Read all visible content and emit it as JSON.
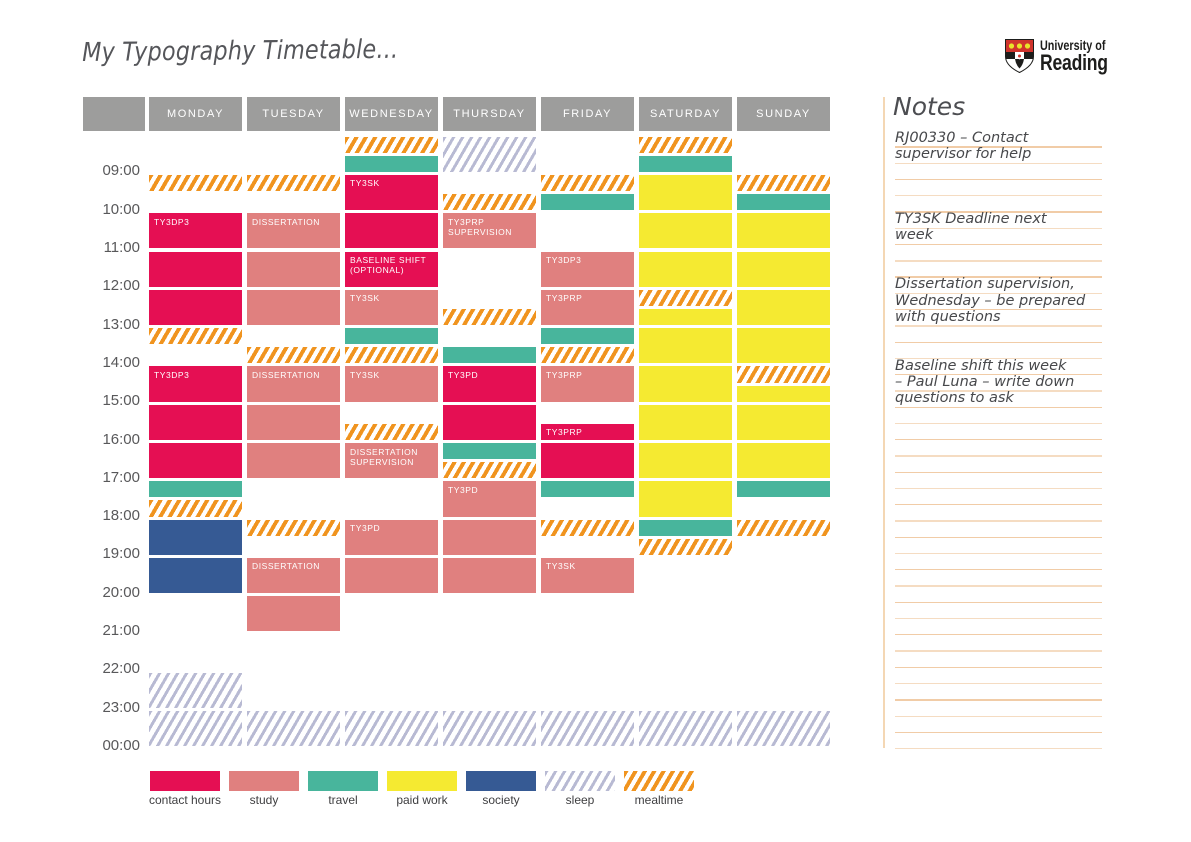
{
  "title": "My Typography Timetable...",
  "logo": {
    "name": "university-of-reading",
    "line1": "University of",
    "line2": "Reading",
    "shield_red": "#d0342c",
    "shield_gold": "#e8e32a",
    "text_color": "#1d1d1b"
  },
  "days": [
    "MONDAY",
    "TUESDAY",
    "WEDNESDAY",
    "THURSDAY",
    "FRIDAY",
    "SATURDAY",
    "SUNDAY"
  ],
  "time_labels": [
    "09:00",
    "10:00",
    "11:00",
    "12:00",
    "13:00",
    "14:00",
    "15:00",
    "16:00",
    "17:00",
    "18:00",
    "19:00",
    "20:00",
    "21:00",
    "22:00",
    "23:00",
    "00:00"
  ],
  "header_color": "#9d9d9c",
  "categories": {
    "contact": {
      "label": "contact hours",
      "color": "#e50f53",
      "pattern": "solid"
    },
    "study": {
      "label": "study",
      "color": "#e0807f",
      "pattern": "solid"
    },
    "travel": {
      "label": "travel",
      "color": "#48b59c",
      "pattern": "solid"
    },
    "paidwork": {
      "label": "paid work",
      "color": "#f5ea31",
      "pattern": "solid"
    },
    "society": {
      "label": "society",
      "color": "#365a94",
      "pattern": "solid"
    },
    "sleep": {
      "label": "sleep",
      "color": "#b8bad3",
      "pattern": "stripes"
    },
    "mealtime": {
      "label": "mealtime",
      "color": "#f0941f",
      "pattern": "stripes"
    }
  },
  "legend_order": [
    "contact",
    "study",
    "travel",
    "paidwork",
    "society",
    "sleep",
    "mealtime"
  ],
  "blocks": [
    {
      "day": 0,
      "start": "09:00",
      "end": "09:30",
      "category": "mealtime",
      "label": ""
    },
    {
      "day": 0,
      "start": "10:00",
      "end": "11:00",
      "category": "contact",
      "label": "TY3DP3"
    },
    {
      "day": 0,
      "start": "11:00",
      "end": "12:00",
      "category": "contact",
      "label": ""
    },
    {
      "day": 0,
      "start": "12:00",
      "end": "13:00",
      "category": "contact",
      "label": ""
    },
    {
      "day": 0,
      "start": "13:00",
      "end": "13:30",
      "category": "mealtime",
      "label": ""
    },
    {
      "day": 0,
      "start": "14:00",
      "end": "15:00",
      "category": "contact",
      "label": "TY3DP3"
    },
    {
      "day": 0,
      "start": "15:00",
      "end": "16:00",
      "category": "contact",
      "label": ""
    },
    {
      "day": 0,
      "start": "16:00",
      "end": "17:00",
      "category": "contact",
      "label": ""
    },
    {
      "day": 0,
      "start": "17:00",
      "end": "17:30",
      "category": "travel",
      "label": ""
    },
    {
      "day": 0,
      "start": "17:30",
      "end": "18:00",
      "category": "mealtime",
      "label": ""
    },
    {
      "day": 0,
      "start": "18:00",
      "end": "19:00",
      "category": "society",
      "label": ""
    },
    {
      "day": 0,
      "start": "19:00",
      "end": "20:00",
      "category": "society",
      "label": ""
    },
    {
      "day": 0,
      "start": "22:00",
      "end": "23:00",
      "category": "sleep",
      "label": ""
    },
    {
      "day": 0,
      "start": "23:00",
      "end": "24:00",
      "category": "sleep",
      "label": ""
    },
    {
      "day": 1,
      "start": "09:00",
      "end": "09:30",
      "category": "mealtime",
      "label": ""
    },
    {
      "day": 1,
      "start": "10:00",
      "end": "11:00",
      "category": "study",
      "label": "DISSERTATION"
    },
    {
      "day": 1,
      "start": "11:00",
      "end": "12:00",
      "category": "study",
      "label": ""
    },
    {
      "day": 1,
      "start": "12:00",
      "end": "13:00",
      "category": "study",
      "label": ""
    },
    {
      "day": 1,
      "start": "13:30",
      "end": "14:00",
      "category": "mealtime",
      "label": ""
    },
    {
      "day": 1,
      "start": "14:00",
      "end": "15:00",
      "category": "study",
      "label": "DISSERTATION"
    },
    {
      "day": 1,
      "start": "15:00",
      "end": "16:00",
      "category": "study",
      "label": ""
    },
    {
      "day": 1,
      "start": "16:00",
      "end": "17:00",
      "category": "study",
      "label": ""
    },
    {
      "day": 1,
      "start": "18:00",
      "end": "18:30",
      "category": "mealtime",
      "label": ""
    },
    {
      "day": 1,
      "start": "19:00",
      "end": "20:00",
      "category": "study",
      "label": "DISSERTATION"
    },
    {
      "day": 1,
      "start": "20:00",
      "end": "21:00",
      "category": "study",
      "label": ""
    },
    {
      "day": 1,
      "start": "23:00",
      "end": "24:00",
      "category": "sleep",
      "label": ""
    },
    {
      "day": 2,
      "start": "08:00",
      "end": "08:30",
      "category": "mealtime",
      "label": ""
    },
    {
      "day": 2,
      "start": "08:30",
      "end": "09:00",
      "category": "travel",
      "label": ""
    },
    {
      "day": 2,
      "start": "09:00",
      "end": "10:00",
      "category": "contact",
      "label": "TY3SK"
    },
    {
      "day": 2,
      "start": "10:00",
      "end": "11:00",
      "category": "contact",
      "label": ""
    },
    {
      "day": 2,
      "start": "11:00",
      "end": "12:00",
      "category": "contact",
      "label": "BASELINE SHIFT (OPTIONAL)"
    },
    {
      "day": 2,
      "start": "12:00",
      "end": "13:00",
      "category": "study",
      "label": "TY3SK"
    },
    {
      "day": 2,
      "start": "13:00",
      "end": "13:30",
      "category": "travel",
      "label": ""
    },
    {
      "day": 2,
      "start": "13:30",
      "end": "14:00",
      "category": "mealtime",
      "label": ""
    },
    {
      "day": 2,
      "start": "14:00",
      "end": "15:00",
      "category": "study",
      "label": "TY3SK"
    },
    {
      "day": 2,
      "start": "15:30",
      "end": "16:00",
      "category": "mealtime",
      "label": ""
    },
    {
      "day": 2,
      "start": "16:00",
      "end": "17:00",
      "category": "study",
      "label": "DISSERTATION SUPERVISION"
    },
    {
      "day": 2,
      "start": "18:00",
      "end": "19:00",
      "category": "study",
      "label": "TY3PD"
    },
    {
      "day": 2,
      "start": "19:00",
      "end": "20:00",
      "category": "study",
      "label": ""
    },
    {
      "day": 2,
      "start": "23:00",
      "end": "24:00",
      "category": "sleep",
      "label": ""
    },
    {
      "day": 3,
      "start": "08:00",
      "end": "09:00",
      "category": "sleep",
      "label": ""
    },
    {
      "day": 3,
      "start": "09:30",
      "end": "10:00",
      "category": "mealtime",
      "label": ""
    },
    {
      "day": 3,
      "start": "10:00",
      "end": "11:00",
      "category": "study",
      "label": "TY3PRP SUPERVISION"
    },
    {
      "day": 3,
      "start": "12:30",
      "end": "13:00",
      "category": "mealtime",
      "label": ""
    },
    {
      "day": 3,
      "start": "13:30",
      "end": "14:00",
      "category": "travel",
      "label": ""
    },
    {
      "day": 3,
      "start": "14:00",
      "end": "15:00",
      "category": "contact",
      "label": "TY3PD"
    },
    {
      "day": 3,
      "start": "15:00",
      "end": "16:00",
      "category": "contact",
      "label": ""
    },
    {
      "day": 3,
      "start": "16:00",
      "end": "16:30",
      "category": "travel",
      "label": ""
    },
    {
      "day": 3,
      "start": "16:30",
      "end": "17:00",
      "category": "mealtime",
      "label": ""
    },
    {
      "day": 3,
      "start": "17:00",
      "end": "18:00",
      "category": "study",
      "label": "TY3PD"
    },
    {
      "day": 3,
      "start": "18:00",
      "end": "19:00",
      "category": "study",
      "label": ""
    },
    {
      "day": 3,
      "start": "19:00",
      "end": "20:00",
      "category": "study",
      "label": ""
    },
    {
      "day": 3,
      "start": "23:00",
      "end": "24:00",
      "category": "sleep",
      "label": ""
    },
    {
      "day": 4,
      "start": "09:00",
      "end": "09:30",
      "category": "mealtime",
      "label": ""
    },
    {
      "day": 4,
      "start": "09:30",
      "end": "10:00",
      "category": "travel",
      "label": ""
    },
    {
      "day": 4,
      "start": "11:00",
      "end": "12:00",
      "category": "study",
      "label": "TY3DP3"
    },
    {
      "day": 4,
      "start": "12:00",
      "end": "13:00",
      "category": "study",
      "label": "TY3PRP"
    },
    {
      "day": 4,
      "start": "13:00",
      "end": "13:30",
      "category": "travel",
      "label": ""
    },
    {
      "day": 4,
      "start": "13:30",
      "end": "14:00",
      "category": "mealtime",
      "label": ""
    },
    {
      "day": 4,
      "start": "14:00",
      "end": "15:00",
      "category": "study",
      "label": "TY3PRP"
    },
    {
      "day": 4,
      "start": "15:30",
      "end": "16:00",
      "category": "contact",
      "label": "TY3PRP"
    },
    {
      "day": 4,
      "start": "16:00",
      "end": "17:00",
      "category": "contact",
      "label": ""
    },
    {
      "day": 4,
      "start": "17:00",
      "end": "17:30",
      "category": "travel",
      "label": ""
    },
    {
      "day": 4,
      "start": "18:00",
      "end": "18:30",
      "category": "mealtime",
      "label": ""
    },
    {
      "day": 4,
      "start": "19:00",
      "end": "20:00",
      "category": "study",
      "label": "TY3SK"
    },
    {
      "day": 4,
      "start": "23:00",
      "end": "24:00",
      "category": "sleep",
      "label": ""
    },
    {
      "day": 5,
      "start": "08:00",
      "end": "08:30",
      "category": "mealtime",
      "label": ""
    },
    {
      "day": 5,
      "start": "08:30",
      "end": "09:00",
      "category": "travel",
      "label": ""
    },
    {
      "day": 5,
      "start": "09:00",
      "end": "10:00",
      "category": "paidwork",
      "label": ""
    },
    {
      "day": 5,
      "start": "10:00",
      "end": "11:00",
      "category": "paidwork",
      "label": ""
    },
    {
      "day": 5,
      "start": "11:00",
      "end": "12:00",
      "category": "paidwork",
      "label": ""
    },
    {
      "day": 5,
      "start": "12:00",
      "end": "12:30",
      "category": "mealtime",
      "label": ""
    },
    {
      "day": 5,
      "start": "12:30",
      "end": "13:00",
      "category": "paidwork",
      "label": ""
    },
    {
      "day": 5,
      "start": "13:00",
      "end": "14:00",
      "category": "paidwork",
      "label": ""
    },
    {
      "day": 5,
      "start": "14:00",
      "end": "15:00",
      "category": "paidwork",
      "label": ""
    },
    {
      "day": 5,
      "start": "15:00",
      "end": "16:00",
      "category": "paidwork",
      "label": ""
    },
    {
      "day": 5,
      "start": "16:00",
      "end": "17:00",
      "category": "paidwork",
      "label": ""
    },
    {
      "day": 5,
      "start": "17:00",
      "end": "18:00",
      "category": "paidwork",
      "label": ""
    },
    {
      "day": 5,
      "start": "18:00",
      "end": "18:30",
      "category": "travel",
      "label": ""
    },
    {
      "day": 5,
      "start": "18:30",
      "end": "19:00",
      "category": "mealtime",
      "label": ""
    },
    {
      "day": 5,
      "start": "23:00",
      "end": "24:00",
      "category": "sleep",
      "label": ""
    },
    {
      "day": 6,
      "start": "09:00",
      "end": "09:30",
      "category": "mealtime",
      "label": ""
    },
    {
      "day": 6,
      "start": "09:30",
      "end": "10:00",
      "category": "travel",
      "label": ""
    },
    {
      "day": 6,
      "start": "10:00",
      "end": "11:00",
      "category": "paidwork",
      "label": ""
    },
    {
      "day": 6,
      "start": "11:00",
      "end": "12:00",
      "category": "paidwork",
      "label": ""
    },
    {
      "day": 6,
      "start": "12:00",
      "end": "13:00",
      "category": "paidwork",
      "label": ""
    },
    {
      "day": 6,
      "start": "13:00",
      "end": "14:00",
      "category": "paidwork",
      "label": ""
    },
    {
      "day": 6,
      "start": "14:00",
      "end": "14:30",
      "category": "mealtime",
      "label": ""
    },
    {
      "day": 6,
      "start": "14:30",
      "end": "15:00",
      "category": "paidwork",
      "label": ""
    },
    {
      "day": 6,
      "start": "15:00",
      "end": "16:00",
      "category": "paidwork",
      "label": ""
    },
    {
      "day": 6,
      "start": "16:00",
      "end": "17:00",
      "category": "paidwork",
      "label": ""
    },
    {
      "day": 6,
      "start": "17:00",
      "end": "17:30",
      "category": "travel",
      "label": ""
    },
    {
      "day": 6,
      "start": "18:00",
      "end": "18:30",
      "category": "mealtime",
      "label": ""
    },
    {
      "day": 6,
      "start": "23:00",
      "end": "24:00",
      "category": "sleep",
      "label": ""
    }
  ],
  "notes": {
    "heading": "Notes",
    "rule_color": "#f0c9a2",
    "items": [
      {
        "line": 0,
        "text_lines": [
          "RJ00330 – Contact",
          "supervisor for help"
        ]
      },
      {
        "line": 5,
        "text_lines": [
          "TY3SK Deadline next",
          "week"
        ]
      },
      {
        "line": 9,
        "text_lines": [
          "Dissertation supervision,",
          "Wednesday – be prepared",
          "with questions"
        ]
      },
      {
        "line": 14,
        "text_lines": [
          "Baseline shift this week",
          "– Paul Luna – write down",
          "questions to ask"
        ]
      }
    ]
  }
}
